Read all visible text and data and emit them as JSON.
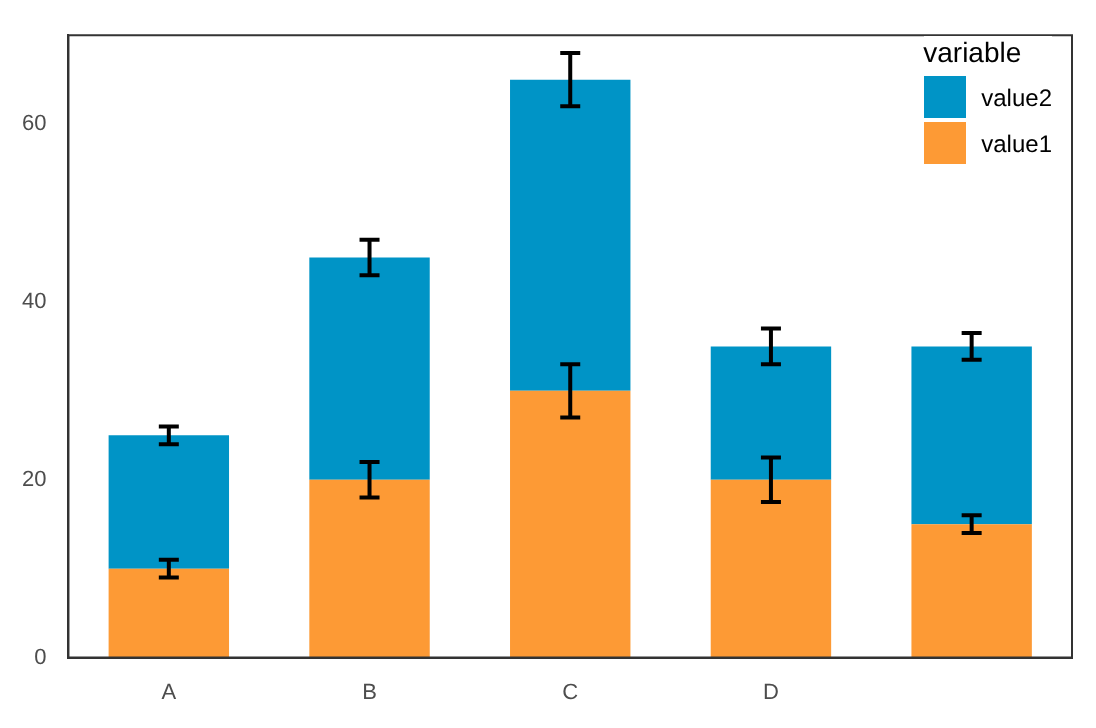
{
  "chart_data": {
    "type": "bar",
    "stacked": true,
    "categories": [
      "A",
      "B",
      "C",
      "D",
      null
    ],
    "series": [
      {
        "name": "value1",
        "color": "#fd9a35",
        "values": [
          10,
          20,
          30,
          20,
          15
        ],
        "errors": [
          1,
          2,
          3,
          2.5,
          1
        ]
      },
      {
        "name": "value2",
        "color": "#0094c6",
        "values": [
          15,
          25,
          35,
          15,
          20
        ],
        "errors": [
          1,
          2,
          3,
          2,
          1.5
        ]
      }
    ],
    "ylim": [
      0,
      70
    ],
    "yticks": [
      0,
      20,
      40,
      60
    ],
    "grid": false,
    "legend": "top right",
    "legend_title": "variable"
  }
}
